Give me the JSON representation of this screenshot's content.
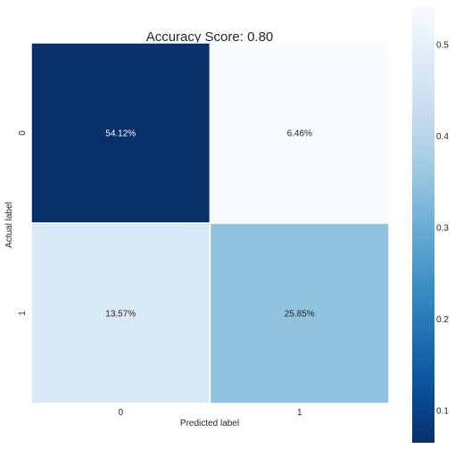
{
  "chart_data": {
    "type": "heatmap",
    "title": "Accuracy Score: 0.80",
    "xlabel": "Predicted label",
    "ylabel": "Actual label",
    "x_categories": [
      "0",
      "1"
    ],
    "y_categories": [
      "0",
      "1"
    ],
    "values": [
      [
        0.5412,
        0.0646
      ],
      [
        0.1357,
        0.2585
      ]
    ],
    "annotations": [
      [
        "54.12%",
        "6.46%"
      ],
      [
        "13.57%",
        "25.85%"
      ]
    ],
    "colormap": "Blues",
    "colorbar": {
      "ticks": [
        0.1,
        0.2,
        0.3,
        0.4,
        0.5
      ],
      "tick_labels": [
        "0.1",
        "0.2",
        "0.3",
        "0.4",
        "0.5"
      ],
      "range": [
        0.0646,
        0.5412
      ]
    },
    "grid": false,
    "legend": "colorbar-right"
  },
  "colors": {
    "text": "#262626",
    "cell_border": "#ffffff",
    "cmap_stops": [
      "#f7fbff",
      "#deebf7",
      "#c6dbef",
      "#9ecae1",
      "#6baed6",
      "#4292c6",
      "#2171b5",
      "#08519c",
      "#08306b"
    ]
  }
}
